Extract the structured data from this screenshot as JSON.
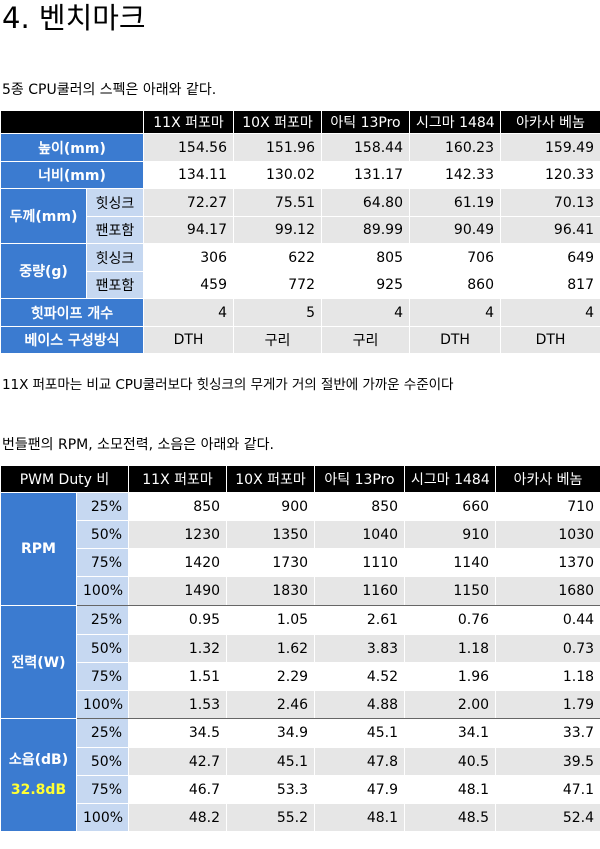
{
  "title": "4. 벤치마크",
  "intro1": "5종 CPU쿨러의 스펙은 아래와 같다.",
  "spec_table": {
    "columns": [
      "11X 퍼포마",
      "10X 퍼포마",
      "아틱 13Pro",
      "시그마 1484",
      "아카사 베놈"
    ],
    "height_label": "높이(mm)",
    "height": [
      "154.56",
      "151.96",
      "158.44",
      "160.23",
      "159.49"
    ],
    "width_label": "너비(mm)",
    "width": [
      "134.11",
      "130.02",
      "131.17",
      "142.33",
      "120.33"
    ],
    "thickness_label": "두께(mm)",
    "weight_label": "중량(g)",
    "heatsink_label": "힛싱크",
    "withfan_label": "팬포함",
    "thickness_heatsink": [
      "72.27",
      "75.51",
      "64.80",
      "61.19",
      "70.13"
    ],
    "thickness_withfan": [
      "94.17",
      "99.12",
      "89.99",
      "90.49",
      "96.41"
    ],
    "weight_heatsink": [
      "306",
      "622",
      "805",
      "706",
      "649"
    ],
    "weight_withfan": [
      "459",
      "772",
      "925",
      "860",
      "817"
    ],
    "heatpipe_label": "힛파이프 개수",
    "heatpipe": [
      "4",
      "5",
      "4",
      "4",
      "4"
    ],
    "base_label": "베이스 구성방식",
    "base": [
      "DTH",
      "구리",
      "구리",
      "DTH",
      "DTH"
    ]
  },
  "note1": "11X 퍼포마는 비교 CPU쿨러보다 힛싱크의 무게가 거의 절반에 가까운 수준이다",
  "intro2": "번들팬의 RPM, 소모전력, 소음은 아래와 같다.",
  "fan_table": {
    "header_label": "PWM Duty 비",
    "columns": [
      "11X 퍼포마",
      "10X 퍼포마",
      "아틱 13Pro",
      "시그마 1484",
      "아카사 베놈"
    ],
    "duties": [
      "25%",
      "50%",
      "75%",
      "100%"
    ],
    "rpm_label": "RPM",
    "rpm": [
      [
        "850",
        "900",
        "850",
        "660",
        "710"
      ],
      [
        "1230",
        "1350",
        "1040",
        "910",
        "1030"
      ],
      [
        "1420",
        "1730",
        "1110",
        "1140",
        "1370"
      ],
      [
        "1490",
        "1830",
        "1160",
        "1150",
        "1680"
      ]
    ],
    "power_label": "전력(W)",
    "power": [
      [
        "0.95",
        "1.05",
        "2.61",
        "0.76",
        "0.44"
      ],
      [
        "1.32",
        "1.62",
        "3.83",
        "1.18",
        "0.73"
      ],
      [
        "1.51",
        "2.29",
        "4.52",
        "1.96",
        "1.18"
      ],
      [
        "1.53",
        "2.46",
        "4.88",
        "2.00",
        "1.79"
      ]
    ],
    "noise_label": "소음(dB)",
    "noise_baseline": "32.8dB",
    "noise": [
      [
        "34.5",
        "34.9",
        "45.1",
        "34.1",
        "33.7"
      ],
      [
        "42.7",
        "45.1",
        "47.8",
        "40.5",
        "39.5"
      ],
      [
        "46.7",
        "53.3",
        "47.9",
        "48.1",
        "47.1"
      ],
      [
        "48.2",
        "55.2",
        "48.1",
        "48.5",
        "52.4"
      ]
    ]
  }
}
